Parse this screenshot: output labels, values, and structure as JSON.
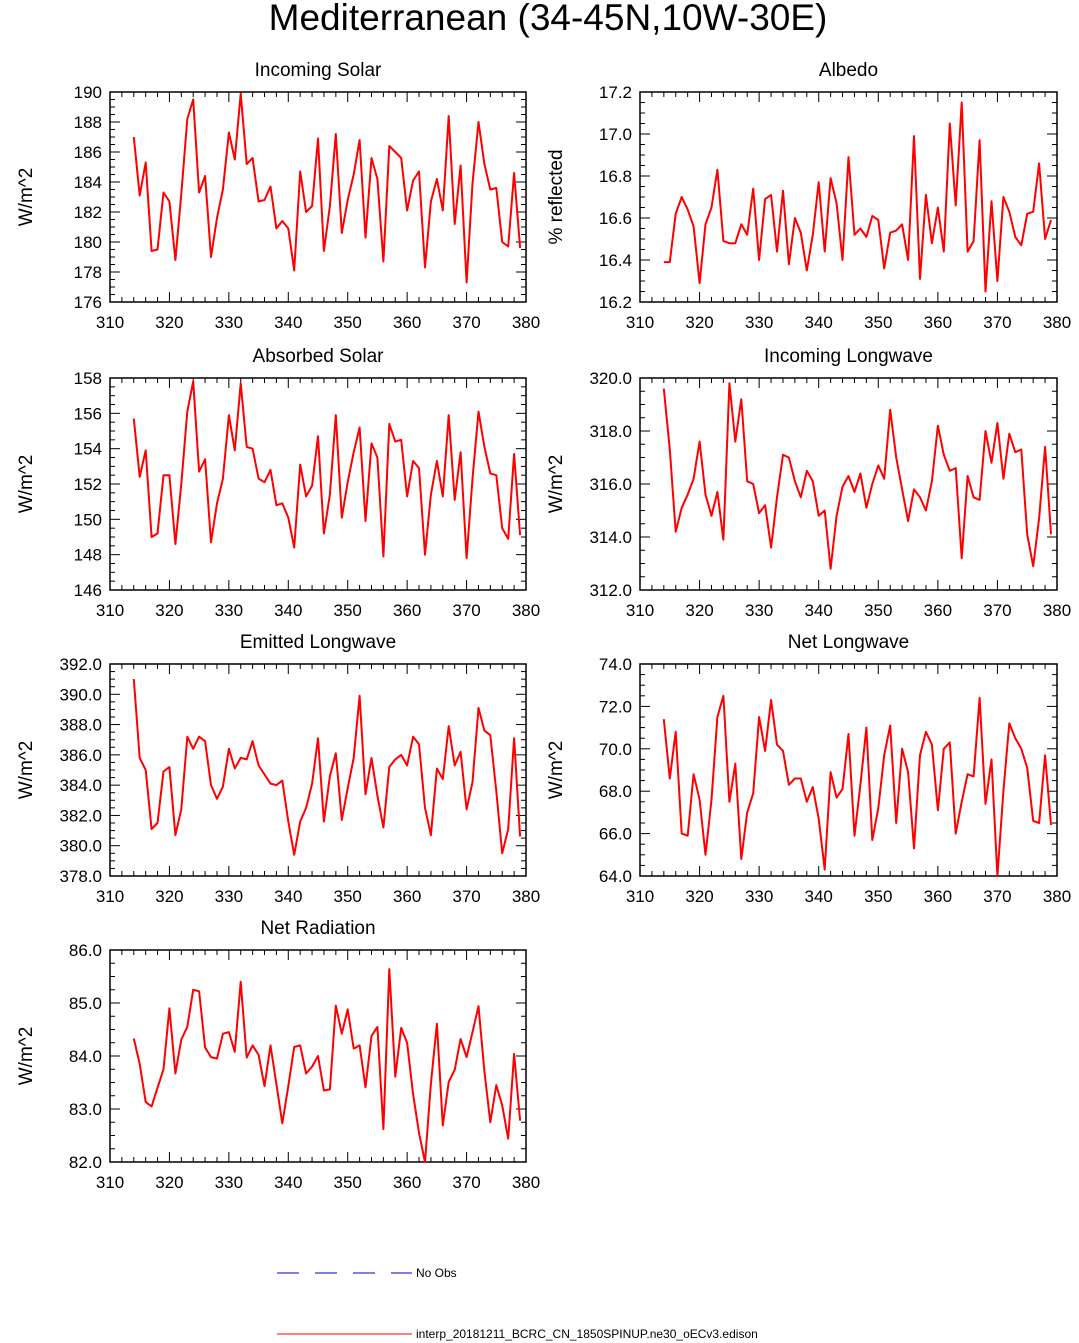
{
  "title": "Mediterranean (34-45N,10W-30E)",
  "legend": {
    "entries": [
      {
        "label": "No Obs",
        "color": "#0000cc",
        "style": "dashed"
      },
      {
        "label": "interp_20181211_BCRC_CN_1850SPINUP.ne30_oECv3.edison",
        "color": "#ff0000",
        "style": "solid"
      }
    ]
  },
  "chart_data": [
    {
      "type": "line",
      "title": "Incoming Solar",
      "ylabel": "W/m^2",
      "xlim": [
        310,
        380
      ],
      "ylim": [
        176,
        190
      ],
      "xticks": [
        "310",
        "320",
        "330",
        "340",
        "350",
        "360",
        "370",
        "380"
      ],
      "yticks": [
        "176",
        "178",
        "180",
        "182",
        "184",
        "186",
        "188",
        "190"
      ],
      "x_start": 314,
      "x_step": 1,
      "series": [
        {
          "color": "#ff0000",
          "values": [
            187.0,
            183.1,
            185.3,
            179.4,
            179.5,
            183.3,
            182.7,
            178.8,
            183.2,
            188.2,
            189.5,
            183.3,
            184.4,
            179.0,
            181.6,
            183.5,
            187.3,
            185.5,
            189.9,
            185.2,
            185.6,
            182.7,
            182.8,
            183.7,
            180.9,
            181.4,
            180.9,
            178.1,
            184.7,
            182.0,
            182.4,
            186.9,
            179.4,
            182.4,
            187.2,
            180.6,
            182.8,
            184.5,
            186.8,
            180.3,
            185.6,
            184.2,
            178.7,
            186.4,
            186.0,
            185.6,
            182.1,
            184.1,
            184.7,
            178.3,
            182.7,
            184.2,
            182.1,
            188.4,
            181.2,
            185.1,
            177.3,
            183.9,
            188.0,
            185.2,
            183.5,
            183.6,
            180.0,
            179.7,
            184.6,
            179.6
          ]
        }
      ]
    },
    {
      "type": "line",
      "title": "Albedo",
      "ylabel": "% reflected",
      "xlim": [
        310,
        380
      ],
      "ylim": [
        16.2,
        17.2
      ],
      "xticks": [
        "310",
        "320",
        "330",
        "340",
        "350",
        "360",
        "370",
        "380"
      ],
      "yticks": [
        "16.2",
        "16.4",
        "16.6",
        "16.8",
        "17.0",
        "17.2"
      ],
      "x_start": 314,
      "x_step": 1,
      "series": [
        {
          "color": "#ff0000",
          "values": [
            16.39,
            16.39,
            16.62,
            16.7,
            16.64,
            16.56,
            16.29,
            16.57,
            16.65,
            16.83,
            16.49,
            16.48,
            16.48,
            16.57,
            16.52,
            16.74,
            16.4,
            16.69,
            16.71,
            16.44,
            16.73,
            16.38,
            16.6,
            16.53,
            16.35,
            16.52,
            16.77,
            16.44,
            16.79,
            16.67,
            16.4,
            16.89,
            16.52,
            16.55,
            16.51,
            16.61,
            16.59,
            16.36,
            16.53,
            16.54,
            16.57,
            16.4,
            16.99,
            16.31,
            16.71,
            16.48,
            16.65,
            16.44,
            17.05,
            16.66,
            17.15,
            16.44,
            16.49,
            16.97,
            16.25,
            16.68,
            16.3,
            16.7,
            16.63,
            16.51,
            16.47,
            16.62,
            16.63,
            16.86,
            16.5,
            16.59
          ]
        }
      ]
    },
    {
      "type": "line",
      "title": "Absorbed Solar",
      "ylabel": "W/m^2",
      "xlim": [
        310,
        380
      ],
      "ylim": [
        146,
        158
      ],
      "xticks": [
        "310",
        "320",
        "330",
        "340",
        "350",
        "360",
        "370",
        "380"
      ],
      "yticks": [
        "146",
        "148",
        "150",
        "152",
        "154",
        "156",
        "158"
      ],
      "x_start": 314,
      "x_step": 1,
      "series": [
        {
          "color": "#ff0000",
          "values": [
            155.7,
            152.4,
            153.9,
            149.0,
            149.2,
            152.5,
            152.5,
            148.6,
            152.0,
            156.1,
            157.8,
            152.7,
            153.4,
            148.7,
            150.9,
            152.3,
            155.9,
            153.9,
            157.7,
            154.1,
            154.0,
            152.3,
            152.1,
            152.8,
            150.8,
            150.9,
            150.1,
            148.4,
            153.1,
            151.3,
            151.9,
            154.7,
            149.2,
            151.4,
            155.9,
            150.1,
            152.1,
            153.8,
            155.2,
            149.9,
            154.3,
            153.5,
            147.9,
            155.4,
            154.4,
            154.5,
            151.3,
            153.3,
            152.9,
            148.0,
            151.4,
            153.3,
            151.3,
            155.9,
            151.1,
            153.8,
            147.8,
            152.3,
            156.1,
            154.1,
            152.6,
            152.5,
            149.5,
            148.9,
            153.7,
            149.1
          ]
        }
      ]
    },
    {
      "type": "line",
      "title": "Incoming Longwave",
      "ylabel": "W/m^2",
      "xlim": [
        310,
        380
      ],
      "ylim": [
        312.0,
        320.0
      ],
      "xticks": [
        "310",
        "320",
        "330",
        "340",
        "350",
        "360",
        "370",
        "380"
      ],
      "yticks": [
        "312.0",
        "314.0",
        "316.0",
        "318.0",
        "320.0"
      ],
      "x_start": 314,
      "x_step": 1,
      "series": [
        {
          "color": "#ff0000",
          "values": [
            319.6,
            317.3,
            314.2,
            315.1,
            315.6,
            316.2,
            317.6,
            315.6,
            314.8,
            315.7,
            313.9,
            319.8,
            317.6,
            319.2,
            316.1,
            316.0,
            314.9,
            315.2,
            313.6,
            315.5,
            317.1,
            317.0,
            316.1,
            315.5,
            316.5,
            316.1,
            314.8,
            315.0,
            312.8,
            314.8,
            315.9,
            316.3,
            315.7,
            316.4,
            315.1,
            316.0,
            316.7,
            316.2,
            318.8,
            317.0,
            315.8,
            314.6,
            315.8,
            315.5,
            315.0,
            316.1,
            318.2,
            317.1,
            316.5,
            316.6,
            313.2,
            316.3,
            315.5,
            315.4,
            318.0,
            316.8,
            318.3,
            316.2,
            317.9,
            317.2,
            317.3,
            314.1,
            312.9,
            314.7,
            317.4,
            314.1
          ]
        }
      ]
    },
    {
      "type": "line",
      "title": "Emitted Longwave",
      "ylabel": "W/m^2",
      "xlim": [
        310,
        380
      ],
      "ylim": [
        378.0,
        392.0
      ],
      "xticks": [
        "310",
        "320",
        "330",
        "340",
        "350",
        "360",
        "370",
        "380"
      ],
      "yticks": [
        "378.0",
        "380.0",
        "382.0",
        "384.0",
        "386.0",
        "388.0",
        "390.0",
        "392.0"
      ],
      "x_start": 314,
      "x_step": 1,
      "series": [
        {
          "color": "#ff0000",
          "values": [
            391.0,
            385.8,
            385.0,
            381.1,
            381.5,
            384.9,
            385.2,
            380.7,
            382.4,
            387.2,
            386.4,
            387.2,
            386.9,
            384.0,
            383.1,
            383.9,
            386.4,
            385.1,
            385.8,
            385.7,
            386.9,
            385.3,
            384.7,
            384.1,
            384.0,
            384.3,
            381.6,
            379.4,
            381.6,
            382.5,
            384.1,
            387.1,
            381.6,
            384.6,
            386.1,
            381.7,
            383.8,
            385.8,
            389.9,
            383.4,
            385.8,
            383.3,
            381.2,
            385.2,
            385.7,
            386.0,
            385.3,
            387.2,
            386.7,
            382.5,
            380.7,
            385.1,
            384.4,
            387.9,
            385.3,
            386.2,
            382.4,
            384.2,
            389.1,
            387.6,
            387.3,
            383.6,
            379.5,
            381.1,
            387.1,
            380.6
          ]
        }
      ]
    },
    {
      "type": "line",
      "title": "Net Longwave",
      "ylabel": "W/m^2",
      "xlim": [
        310,
        380
      ],
      "ylim": [
        64.0,
        74.0
      ],
      "xticks": [
        "310",
        "320",
        "330",
        "340",
        "350",
        "360",
        "370",
        "380"
      ],
      "yticks": [
        "64.0",
        "66.0",
        "68.0",
        "70.0",
        "72.0",
        "74.0"
      ],
      "x_start": 314,
      "x_step": 1,
      "series": [
        {
          "color": "#ff0000",
          "values": [
            71.4,
            68.6,
            70.8,
            66.0,
            65.9,
            68.8,
            67.6,
            65.0,
            67.6,
            71.5,
            72.5,
            67.5,
            69.3,
            64.8,
            67.0,
            67.9,
            71.5,
            69.9,
            72.3,
            70.2,
            69.9,
            68.3,
            68.6,
            68.6,
            67.5,
            68.2,
            66.7,
            64.3,
            68.9,
            67.7,
            68.1,
            70.7,
            65.9,
            68.3,
            71.0,
            65.7,
            67.2,
            69.7,
            71.1,
            66.5,
            70.0,
            68.9,
            65.3,
            69.7,
            70.8,
            70.2,
            67.1,
            70.0,
            70.3,
            66.0,
            67.5,
            68.8,
            68.7,
            72.4,
            67.4,
            69.5,
            64.0,
            68.0,
            71.2,
            70.5,
            70.0,
            69.1,
            66.6,
            66.5,
            69.7,
            66.4
          ]
        }
      ]
    },
    {
      "type": "line",
      "title": "Net Radiation",
      "ylabel": "W/m^2",
      "xlim": [
        310,
        380
      ],
      "ylim": [
        82.0,
        86.0
      ],
      "xticks": [
        "310",
        "320",
        "330",
        "340",
        "350",
        "360",
        "370",
        "380"
      ],
      "yticks": [
        "82.0",
        "83.0",
        "84.0",
        "85.0",
        "86.0"
      ],
      "x_start": 314,
      "x_step": 1,
      "series": [
        {
          "color": "#ff0000",
          "values": [
            84.33,
            83.85,
            83.13,
            83.05,
            83.4,
            83.75,
            84.9,
            83.67,
            84.31,
            84.55,
            85.25,
            85.22,
            84.16,
            83.98,
            83.95,
            84.42,
            84.45,
            84.08,
            85.4,
            83.97,
            84.2,
            84.02,
            83.43,
            84.2,
            83.47,
            82.73,
            83.43,
            84.17,
            84.2,
            83.67,
            83.8,
            84.0,
            83.35,
            83.37,
            84.95,
            84.42,
            84.88,
            84.14,
            84.2,
            83.41,
            84.38,
            84.55,
            82.62,
            85.64,
            83.61,
            84.53,
            84.25,
            83.28,
            82.55,
            82.0,
            83.48,
            84.61,
            82.69,
            83.51,
            83.74,
            84.32,
            83.98,
            84.45,
            84.94,
            83.71,
            82.75,
            83.45,
            83.07,
            82.44,
            84.04,
            82.78
          ]
        }
      ]
    }
  ]
}
